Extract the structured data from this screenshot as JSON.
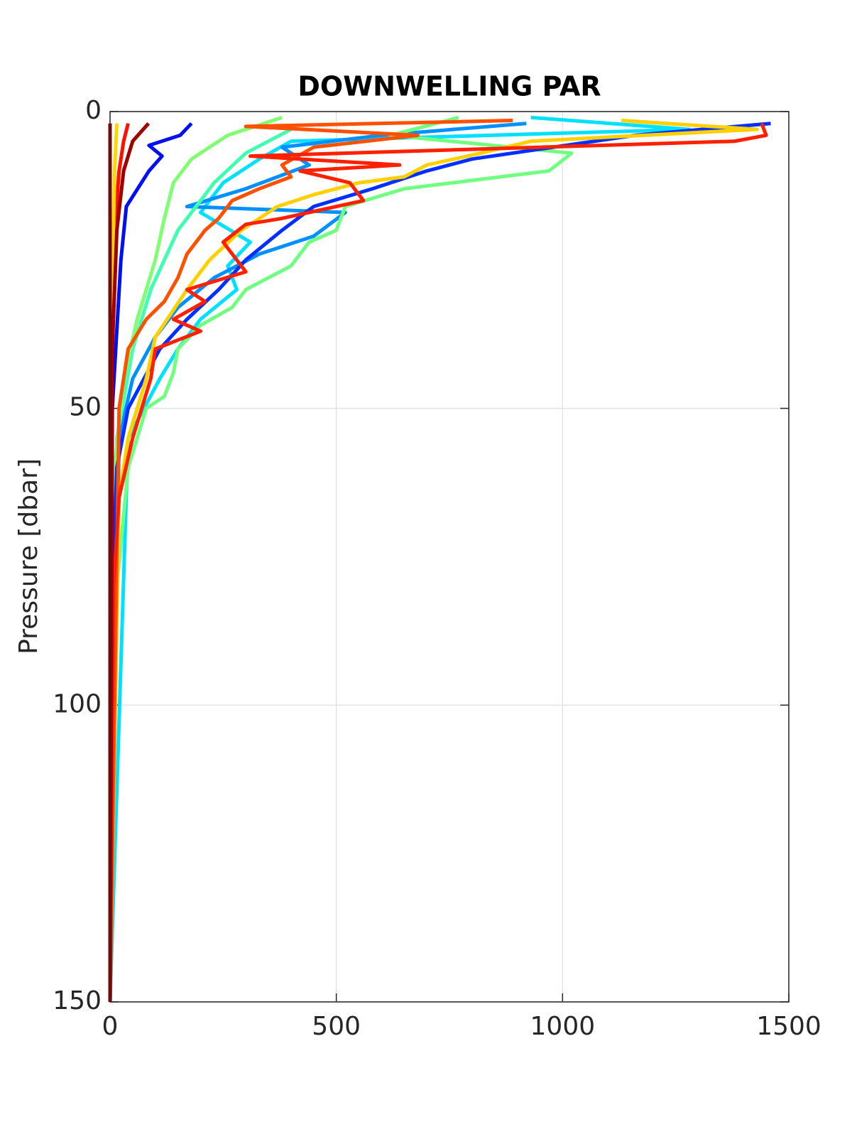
{
  "chart_data": {
    "type": "line",
    "title": "DOWNWELLING PAR",
    "ylabel": "Pressure [dbar]",
    "xlim": [
      0,
      1500
    ],
    "xticks": [
      0,
      500,
      1000,
      1500
    ],
    "ylim": [
      150,
      0
    ],
    "yticks": [
      0,
      50,
      100,
      150
    ],
    "grid": true,
    "series": [
      {
        "color": "#00e0ff",
        "x": [
          930,
          1280,
          400,
          330,
          250,
          200,
          310,
          260,
          280,
          200,
          150,
          110,
          40,
          0
        ],
        "y": [
          1,
          3,
          5,
          8,
          12,
          17,
          22,
          26,
          30,
          35,
          40,
          45,
          55,
          150
        ]
      },
      {
        "color": "#0090ff",
        "x": [
          920,
          600,
          380,
          440,
          300,
          170,
          520,
          450,
          330,
          230,
          150,
          100,
          50,
          20,
          0
        ],
        "y": [
          2,
          4,
          6,
          9,
          13,
          16,
          17,
          21,
          24,
          28,
          33,
          38,
          45,
          55,
          150
        ]
      },
      {
        "color": "#40ffb0",
        "x": [
          400,
          300,
          230,
          150,
          90,
          50,
          15,
          0
        ],
        "y": [
          3,
          7,
          12,
          20,
          30,
          40,
          55,
          150
        ]
      },
      {
        "color": "#80ff70",
        "x": [
          380,
          260,
          180,
          140,
          120,
          100,
          60,
          30,
          10,
          0
        ],
        "y": [
          1,
          4,
          8,
          12,
          18,
          25,
          35,
          45,
          60,
          150
        ]
      },
      {
        "color": "#70ff80",
        "x": [
          770,
          620,
          1020,
          970,
          650,
          520,
          500,
          440,
          400,
          300,
          270,
          200,
          150,
          140,
          120,
          80,
          40,
          15,
          0
        ],
        "y": [
          1,
          4,
          7,
          10,
          13,
          16,
          20,
          22,
          26,
          30,
          33,
          36,
          40,
          44,
          48,
          50,
          60,
          80,
          150
        ]
      },
      {
        "color": "#0030ff",
        "x": [
          1460,
          1160,
          800,
          700,
          580,
          450,
          380,
          300,
          240,
          170,
          110,
          40,
          15,
          5,
          0
        ],
        "y": [
          2,
          4,
          8,
          10,
          13,
          16,
          20,
          25,
          30,
          35,
          40,
          50,
          60,
          80,
          150
        ]
      },
      {
        "color": "#ffd000",
        "x": [
          1130,
          1430,
          930,
          820,
          700,
          650,
          550,
          450,
          370,
          290,
          220,
          170,
          100,
          80,
          40,
          20,
          0
        ],
        "y": [
          1.5,
          3,
          5,
          7,
          9,
          11,
          12,
          14,
          16,
          20,
          25,
          30,
          38,
          45,
          55,
          65,
          150
        ]
      },
      {
        "color": "#ff5000",
        "x": [
          890,
          300,
          680,
          450,
          380,
          400,
          330,
          270,
          240,
          210,
          170,
          150,
          120,
          80,
          40,
          20,
          0
        ],
        "y": [
          1.5,
          2.5,
          4,
          6,
          9,
          11,
          13,
          15,
          18,
          20,
          24,
          28,
          32,
          35,
          40,
          50,
          150
        ]
      },
      {
        "color": "#ff2000",
        "x": [
          1440,
          1450,
          1380,
          310,
          640,
          420,
          530,
          560,
          380,
          300,
          250,
          300,
          170,
          210,
          140,
          200,
          100,
          90,
          70,
          50,
          20,
          8,
          0
        ],
        "y": [
          2,
          4,
          5,
          7.5,
          9,
          10,
          12,
          15,
          18,
          19,
          22,
          27,
          30,
          32,
          35,
          37,
          40,
          45,
          50,
          55,
          65,
          80,
          150
        ]
      },
      {
        "color": "#0010f0",
        "x": [
          180,
          155,
          86,
          115,
          86,
          36,
          24,
          5,
          0
        ],
        "y": [
          2,
          4,
          5.7,
          7.5,
          10,
          16,
          25,
          50,
          150
        ]
      },
      {
        "color": "#ff1000",
        "x": [
          40,
          30,
          20,
          10,
          3,
          0
        ],
        "y": [
          2,
          5,
          10,
          20,
          40,
          150
        ]
      },
      {
        "color": "#ffd700",
        "x": [
          15,
          10,
          3,
          0
        ],
        "y": [
          2,
          10,
          40,
          150
        ]
      },
      {
        "color": "#a00000",
        "x": [
          85,
          50,
          30,
          15,
          5,
          0
        ],
        "y": [
          2,
          5,
          10,
          20,
          40,
          150
        ]
      },
      {
        "color": "#900000",
        "x": [
          0,
          0
        ],
        "y": [
          2,
          150
        ]
      }
    ]
  }
}
